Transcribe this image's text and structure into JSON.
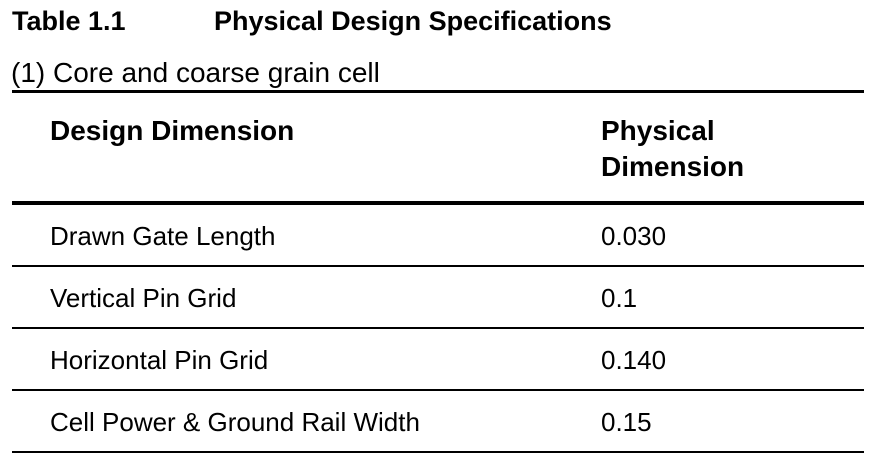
{
  "caption": {
    "number": "Table 1.1",
    "title": "Physical Design Specifications"
  },
  "subtitle": "(1) Core and coarse grain cell",
  "table": {
    "headers": [
      "Design Dimension",
      "Physical Dimension"
    ],
    "rows": [
      [
        "Drawn Gate Length",
        "0.030"
      ],
      [
        "Vertical Pin Grid",
        "0.1"
      ],
      [
        "Horizontal Pin Grid",
        "0.140"
      ],
      [
        "Cell Power & Ground Rail Width",
        "0.15"
      ]
    ]
  }
}
